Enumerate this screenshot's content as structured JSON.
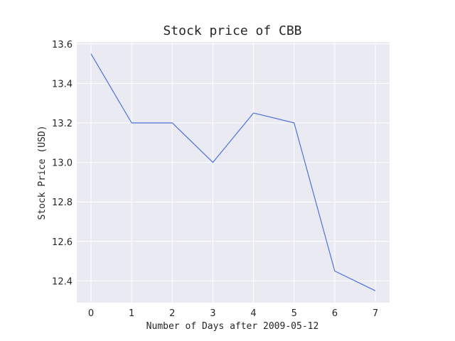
{
  "chart_data": {
    "type": "line",
    "title": "Stock price of CBB",
    "xlabel": "Number of Days after 2009-05-12",
    "ylabel": "Stock Price (USD)",
    "x": [
      0,
      1,
      2,
      3,
      4,
      5,
      6,
      7
    ],
    "series": [
      {
        "values": [
          13.55,
          13.2,
          13.2,
          13.0,
          13.25,
          13.2,
          12.45,
          12.35
        ],
        "color": "#4c72d9"
      }
    ],
    "xlim": [
      -0.35,
      7.35
    ],
    "ylim": [
      12.29,
      13.61
    ],
    "xticks": [
      "0",
      "1",
      "2",
      "3",
      "4",
      "5",
      "6",
      "7"
    ],
    "yticks": [
      "12.4",
      "12.6",
      "12.8",
      "13.0",
      "13.2",
      "13.4",
      "13.6"
    ],
    "grid": true,
    "background": "#eaeaf2"
  }
}
